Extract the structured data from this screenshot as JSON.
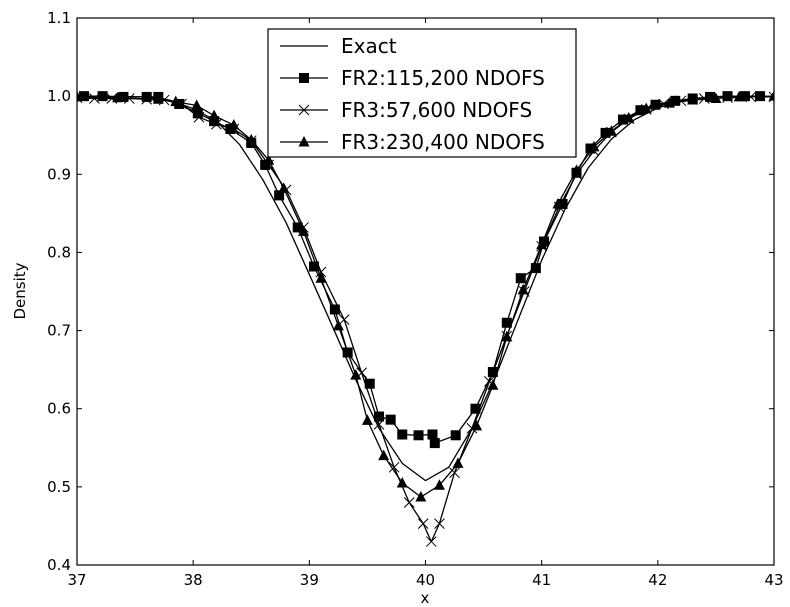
{
  "chart_data": {
    "type": "line",
    "title": "",
    "xlabel": "x",
    "ylabel": "Density",
    "xlim": [
      37,
      43
    ],
    "ylim": [
      0.4,
      1.1
    ],
    "x_ticks": [
      37,
      38,
      39,
      40,
      41,
      42,
      43
    ],
    "y_ticks": [
      0.4,
      0.5,
      0.6,
      0.7,
      0.8,
      0.9,
      1.0,
      1.1
    ],
    "x_tick_labels": [
      "37",
      "38",
      "39",
      "40",
      "41",
      "42",
      "43"
    ],
    "y_tick_labels": [
      "0.4",
      "0.5",
      "0.6",
      "0.7",
      "0.8",
      "0.9",
      "1.0",
      "1.1"
    ],
    "grid": false,
    "legend_position": "top-center",
    "series": [
      {
        "name": "Exact",
        "marker": "none",
        "color": "#000000",
        "x": [
          37.0,
          37.6,
          37.8,
          38.0,
          38.2,
          38.4,
          38.6,
          38.8,
          39.0,
          39.2,
          39.4,
          39.6,
          39.8,
          40.0,
          40.2,
          40.4,
          40.6,
          40.8,
          41.0,
          41.2,
          41.4,
          41.6,
          41.8,
          42.0,
          42.2,
          42.4,
          43.0
        ],
        "y": [
          1.0,
          0.999,
          0.995,
          0.984,
          0.968,
          0.938,
          0.893,
          0.838,
          0.772,
          0.705,
          0.637,
          0.575,
          0.53,
          0.508,
          0.525,
          0.575,
          0.64,
          0.715,
          0.79,
          0.855,
          0.908,
          0.945,
          0.97,
          0.985,
          0.993,
          0.997,
          1.0
        ]
      },
      {
        "name": "FR2:115,200 NDOFS",
        "marker": "square",
        "color": "#000000",
        "x": [
          37.06,
          37.22,
          37.4,
          37.6,
          37.7,
          37.88,
          38.04,
          38.18,
          38.32,
          38.5,
          38.62,
          38.74,
          38.9,
          39.04,
          39.22,
          39.33,
          39.52,
          39.6,
          39.7,
          39.8,
          39.94,
          40.06,
          40.08,
          40.26,
          40.43,
          40.58,
          40.7,
          40.82,
          40.95,
          41.02,
          41.18,
          41.3,
          41.42,
          41.55,
          41.7,
          41.85,
          41.98,
          42.15,
          42.3,
          42.45,
          42.6,
          42.75,
          42.88
        ],
        "y": [
          1.0,
          1.0,
          0.999,
          0.999,
          0.999,
          0.99,
          0.978,
          0.968,
          0.958,
          0.94,
          0.912,
          0.873,
          0.832,
          0.782,
          0.727,
          0.672,
          0.632,
          0.59,
          0.586,
          0.567,
          0.566,
          0.567,
          0.556,
          0.566,
          0.6,
          0.647,
          0.71,
          0.767,
          0.78,
          0.814,
          0.862,
          0.902,
          0.933,
          0.953,
          0.97,
          0.982,
          0.989,
          0.994,
          0.997,
          0.999,
          1.0,
          1.0,
          1.0
        ]
      },
      {
        "name": "FR3:57,600 NDOFS",
        "marker": "x",
        "color": "#000000",
        "x": [
          37.0,
          37.15,
          37.3,
          37.45,
          37.6,
          37.75,
          37.9,
          38.05,
          38.2,
          38.35,
          38.5,
          38.65,
          38.8,
          38.95,
          39.1,
          39.3,
          39.45,
          39.6,
          39.73,
          39.86,
          39.98,
          40.05,
          40.12,
          40.25,
          40.4,
          40.55,
          40.7,
          40.85,
          41.0,
          41.15,
          41.3,
          41.45,
          41.6,
          41.75,
          41.9,
          42.05,
          42.2,
          42.4,
          42.6,
          42.8,
          43.0
        ],
        "y": [
          0.998,
          0.997,
          0.997,
          0.997,
          0.996,
          0.995,
          0.99,
          0.973,
          0.964,
          0.958,
          0.943,
          0.912,
          0.88,
          0.832,
          0.775,
          0.714,
          0.646,
          0.58,
          0.525,
          0.48,
          0.453,
          0.43,
          0.453,
          0.518,
          0.575,
          0.635,
          0.693,
          0.75,
          0.808,
          0.858,
          0.9,
          0.93,
          0.954,
          0.971,
          0.983,
          0.99,
          0.994,
          0.997,
          0.998,
          0.999,
          0.999
        ]
      },
      {
        "name": "FR3:230,400 NDOFS",
        "marker": "triangle",
        "color": "#000000",
        "x": [
          37.0,
          37.35,
          37.7,
          37.85,
          38.03,
          38.18,
          38.35,
          38.5,
          38.65,
          38.78,
          38.95,
          39.1,
          39.25,
          39.4,
          39.5,
          39.64,
          39.8,
          39.96,
          40.12,
          40.28,
          40.44,
          40.58,
          40.7,
          40.84,
          41.0,
          41.14,
          41.3,
          41.45,
          41.6,
          41.75,
          41.9,
          42.1,
          42.3,
          42.5,
          42.7,
          43.0
        ],
        "y": [
          0.999,
          0.998,
          0.996,
          0.993,
          0.988,
          0.975,
          0.963,
          0.944,
          0.918,
          0.882,
          0.827,
          0.767,
          0.706,
          0.643,
          0.585,
          0.54,
          0.505,
          0.487,
          0.502,
          0.53,
          0.578,
          0.63,
          0.692,
          0.752,
          0.81,
          0.862,
          0.905,
          0.935,
          0.955,
          0.972,
          0.984,
          0.991,
          0.995,
          0.997,
          0.999,
          1.0
        ]
      }
    ]
  }
}
